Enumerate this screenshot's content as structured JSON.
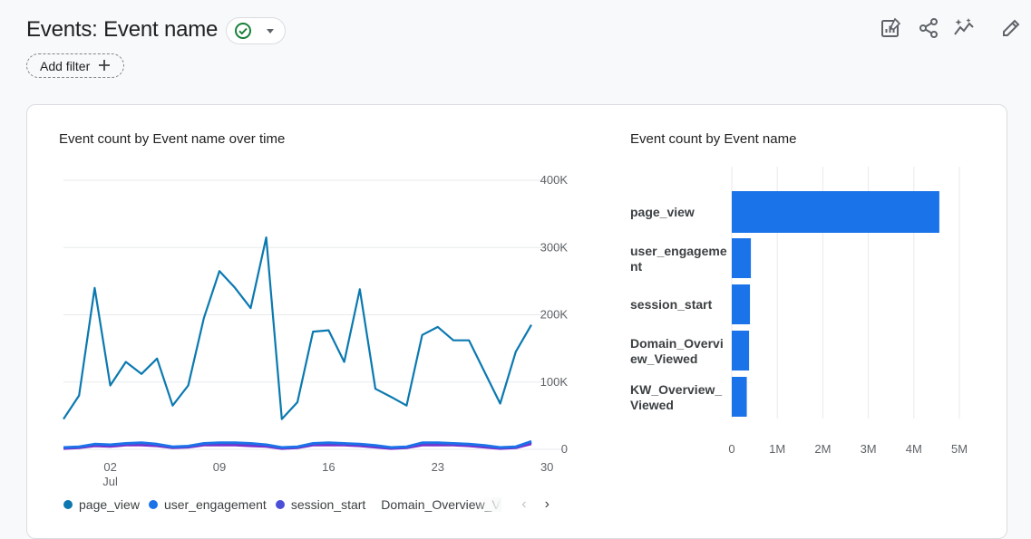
{
  "header": {
    "title": "Events: Event name",
    "add_filter_label": "Add filter"
  },
  "status_chip": {
    "status": "check-circle-icon",
    "dropdown": "caret-down-icon"
  },
  "toolbar": {
    "icons": [
      "customize-report-icon",
      "share-icon",
      "insights-icon",
      "edit-icon"
    ]
  },
  "colors": {
    "page_view": "#0b79b0",
    "user_engagement": "#1a73e8",
    "session_start": "#4a4fd8",
    "domain_overview": "#7b2fce",
    "kw_overview": "#9334e6",
    "bar": "#1a73e8",
    "grid": "#e8eaed",
    "status_ok": "#188038"
  },
  "chart_data": [
    {
      "type": "line",
      "title": "Event count by Event name over time",
      "x_tick_labels": [
        "02",
        "09",
        "16",
        "23",
        "30"
      ],
      "x_month_label": "Jul",
      "x_day_start": 30,
      "y_ticks": [
        0,
        100000,
        200000,
        300000,
        400000
      ],
      "y_tick_labels": [
        "0",
        "100K",
        "200K",
        "300K",
        "400K"
      ],
      "ylim": [
        0,
        400000
      ],
      "grid": true,
      "series": [
        {
          "name": "page_view",
          "color_key": "page_view",
          "values": [
            45000,
            80000,
            240000,
            95000,
            130000,
            112000,
            135000,
            65000,
            95000,
            195000,
            265000,
            240000,
            210000,
            315000,
            45000,
            70000,
            175000,
            177000,
            130000,
            238000,
            90000,
            78000,
            65000,
            170000,
            182000,
            162000,
            162000,
            115000,
            68000,
            145000,
            185000
          ]
        },
        {
          "name": "user_engagement",
          "color_key": "user_engagement",
          "values": [
            3000,
            4000,
            8000,
            7000,
            9000,
            10000,
            8000,
            4000,
            5000,
            9000,
            10000,
            10000,
            9000,
            7000,
            3000,
            4000,
            9000,
            10000,
            9000,
            8000,
            6000,
            3000,
            4000,
            10000,
            10000,
            9000,
            8000,
            6000,
            3000,
            4000,
            12000
          ]
        },
        {
          "name": "session_start",
          "color_key": "session_start",
          "values": [
            2000,
            3000,
            7000,
            6000,
            8000,
            9000,
            7000,
            3000,
            4000,
            8000,
            9000,
            9000,
            8000,
            6000,
            2000,
            3000,
            8000,
            9000,
            8000,
            7000,
            5000,
            2000,
            3000,
            9000,
            9000,
            8000,
            7000,
            5000,
            2000,
            3000,
            11000
          ]
        },
        {
          "name": "Domain_Overview_Viewed",
          "color_key": "domain_overview",
          "values": [
            1000,
            2000,
            5000,
            4000,
            6000,
            6000,
            5000,
            2000,
            3000,
            6000,
            6000,
            6000,
            5000,
            4000,
            1000,
            2000,
            6000,
            6000,
            6000,
            5000,
            3000,
            1000,
            2000,
            6000,
            6000,
            6000,
            5000,
            3000,
            1000,
            2000,
            8000
          ]
        },
        {
          "name": "KW_Overview_Viewed",
          "color_key": "kw_overview",
          "values": [
            2000,
            3000,
            6000,
            5000,
            7000,
            8000,
            6000,
            3000,
            4000,
            7000,
            8000,
            8000,
            7000,
            5000,
            2000,
            3000,
            7000,
            8000,
            7000,
            6000,
            4000,
            2000,
            3000,
            8000,
            8000,
            7000,
            6000,
            4000,
            2000,
            3000,
            10000
          ]
        }
      ],
      "legend": {
        "placement": "bottom-left",
        "items": [
          {
            "label": "page_view",
            "color_key": "page_view"
          },
          {
            "label": "user_engagement",
            "color_key": "user_engagement"
          },
          {
            "label": "session_start",
            "color_key": "session_start"
          },
          {
            "label": "Domain_Overview_Viewed",
            "color_key": "domain_overview"
          }
        ],
        "prev": "‹",
        "next": "›"
      }
    },
    {
      "type": "bar",
      "orientation": "horizontal",
      "title": "Event count by Event name",
      "categories": [
        "page_view",
        "user_engagement",
        "session_start",
        "Domain_Overview_Viewed",
        "KW_Overview_Viewed"
      ],
      "category_display_lines": [
        [
          "page_view"
        ],
        [
          "user_engageme",
          "nt"
        ],
        [
          "session_start"
        ],
        [
          "Domain_Overvi",
          "ew_Viewed"
        ],
        [
          "KW_Overview_",
          "Viewed"
        ]
      ],
      "values": [
        4560000,
        420000,
        400000,
        380000,
        330000
      ],
      "x_ticks": [
        0,
        1000000,
        2000000,
        3000000,
        4000000,
        5000000
      ],
      "x_tick_labels": [
        "0",
        "1M",
        "2M",
        "3M",
        "4M",
        "5M"
      ],
      "xlim": [
        0,
        5000000
      ],
      "grid": true
    }
  ]
}
